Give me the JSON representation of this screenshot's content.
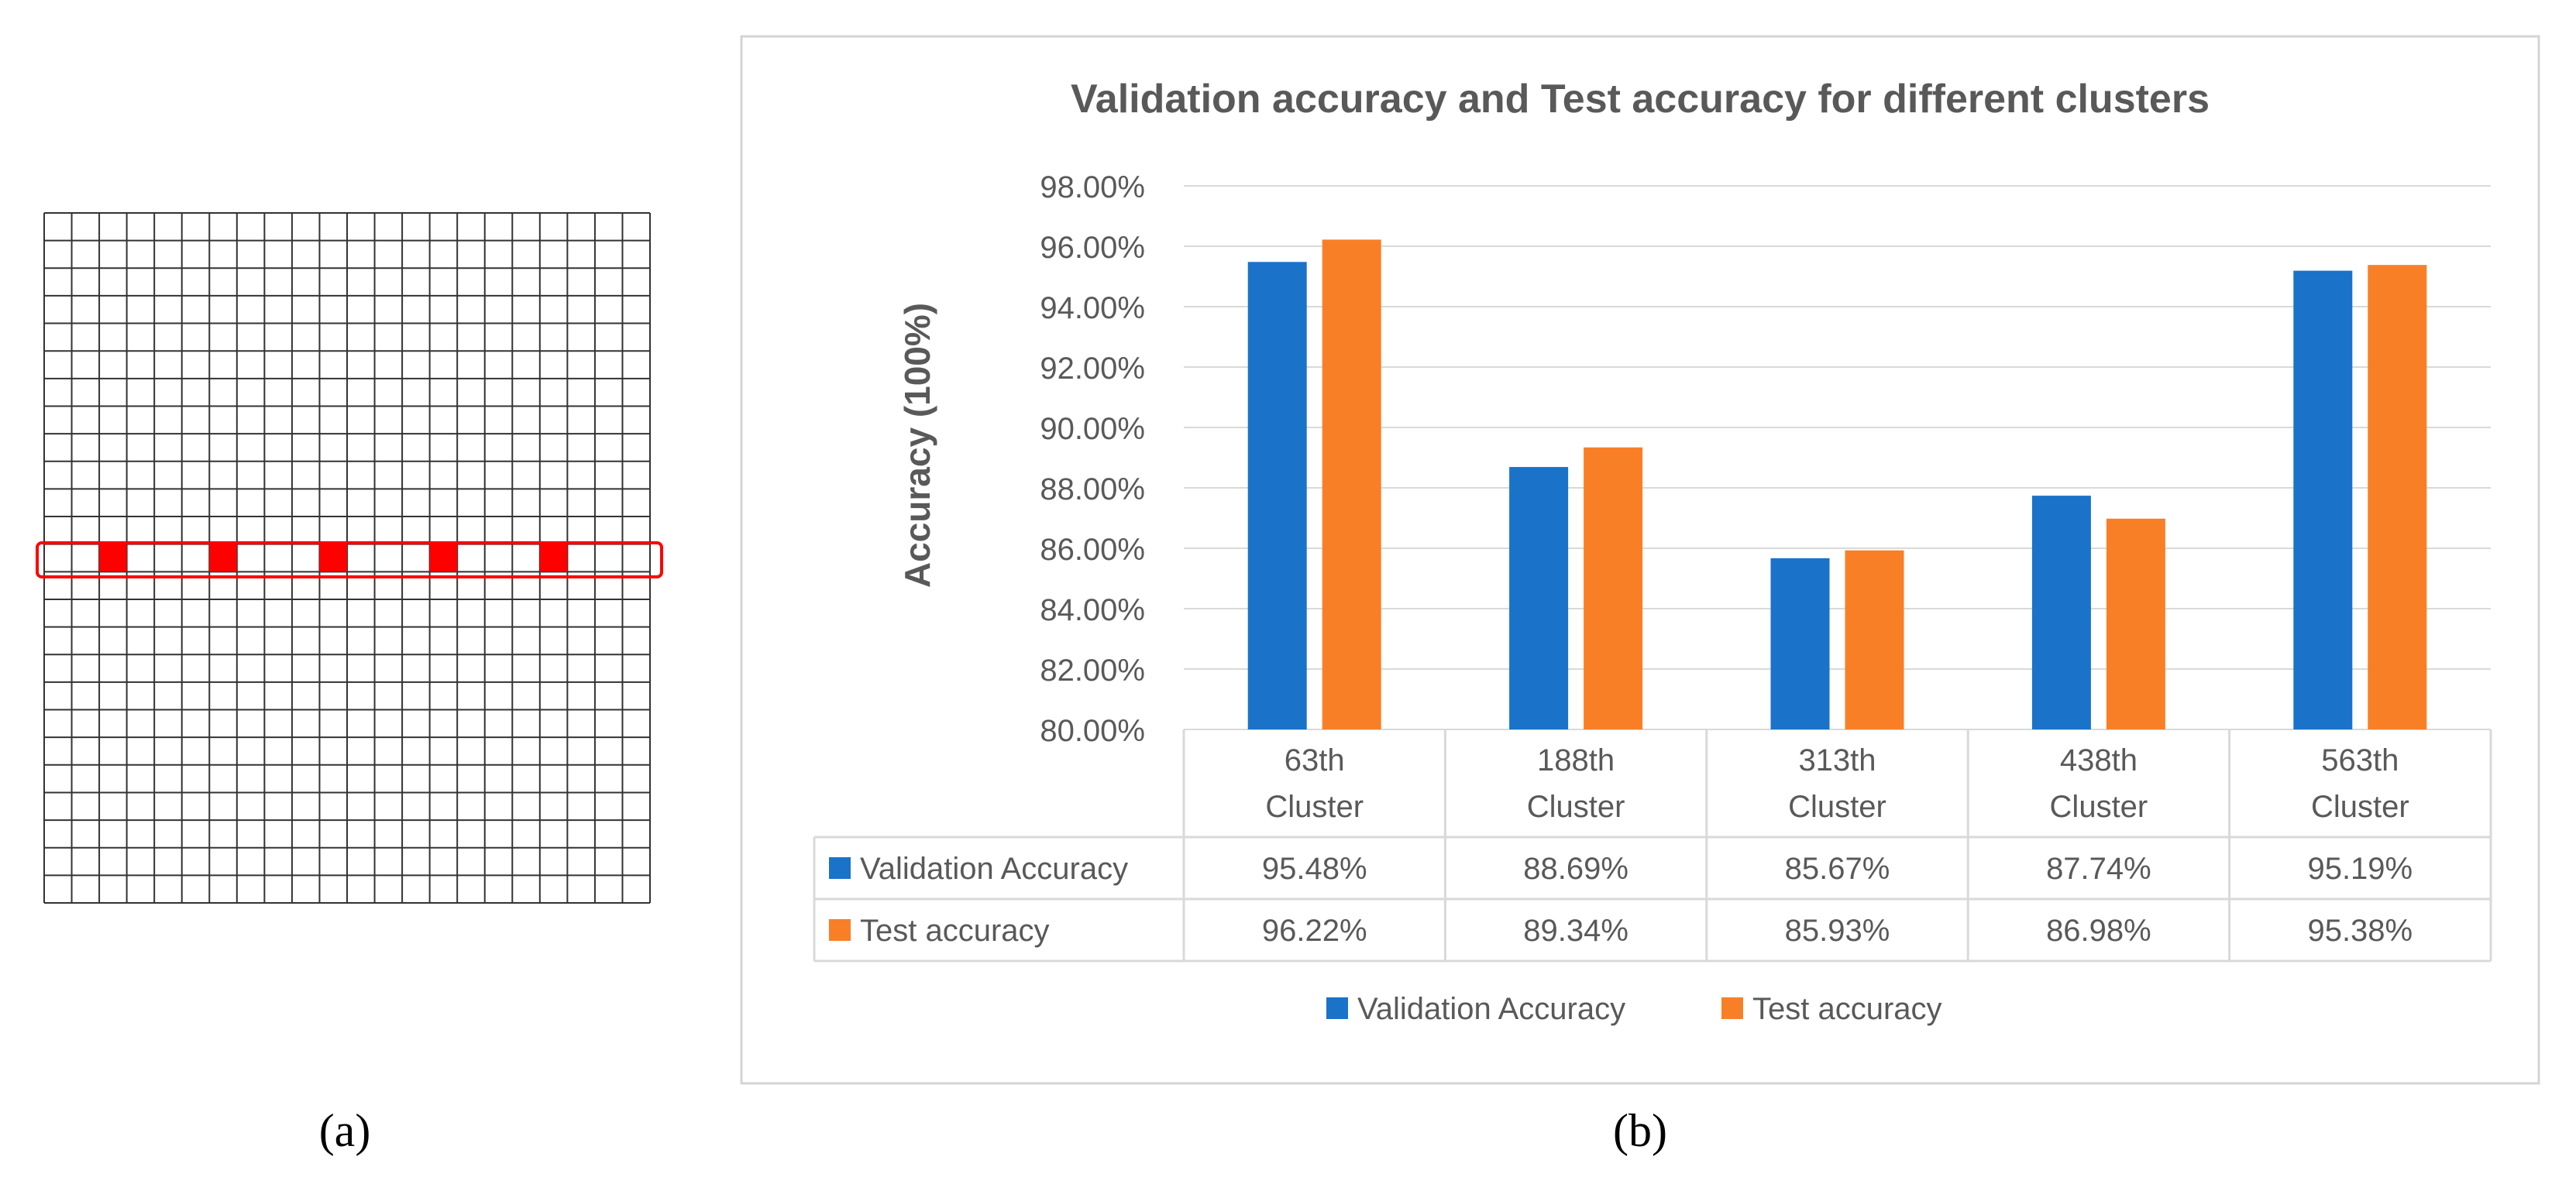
{
  "panel_a": {
    "label": "(a)",
    "grid_rows": 25,
    "grid_cols": 22,
    "highlight_row_index": 12,
    "highlighted_cells": [
      2,
      6,
      10,
      14,
      18
    ],
    "highlight_color": "#ff0000",
    "grid_line_color": "#333333"
  },
  "panel_b": {
    "label": "(b)"
  },
  "chart_data": {
    "type": "bar",
    "title": "Validation accuracy and Test accuracy for different clusters",
    "xlabel": "",
    "ylabel": "Accuracy (100%)",
    "ylim": [
      80,
      98
    ],
    "yticks": [
      80,
      82,
      84,
      86,
      88,
      90,
      92,
      94,
      96,
      98
    ],
    "ytick_labels": [
      "80.00%",
      "82.00%",
      "84.00%",
      "86.00%",
      "88.00%",
      "90.00%",
      "92.00%",
      "94.00%",
      "96.00%",
      "98.00%"
    ],
    "grid": true,
    "categories": [
      [
        "63th",
        "Cluster"
      ],
      [
        "188th",
        "Cluster"
      ],
      [
        "313th",
        "Cluster"
      ],
      [
        "438th",
        "Cluster"
      ],
      [
        "563th",
        "Cluster"
      ]
    ],
    "series": [
      {
        "name": "Validation Accuracy",
        "color": "#1a73c9",
        "values": [
          95.48,
          88.69,
          85.67,
          87.74,
          95.19
        ],
        "labels": [
          "95.48%",
          "88.69%",
          "85.67%",
          "87.74%",
          "95.19%"
        ]
      },
      {
        "name": "Test accuracy",
        "color": "#f97f27",
        "values": [
          96.22,
          89.34,
          85.93,
          86.98,
          95.38
        ],
        "labels": [
          "96.22%",
          "89.34%",
          "85.93%",
          "86.98%",
          "95.38%"
        ]
      }
    ],
    "legend": "bottom",
    "data_table": true
  }
}
